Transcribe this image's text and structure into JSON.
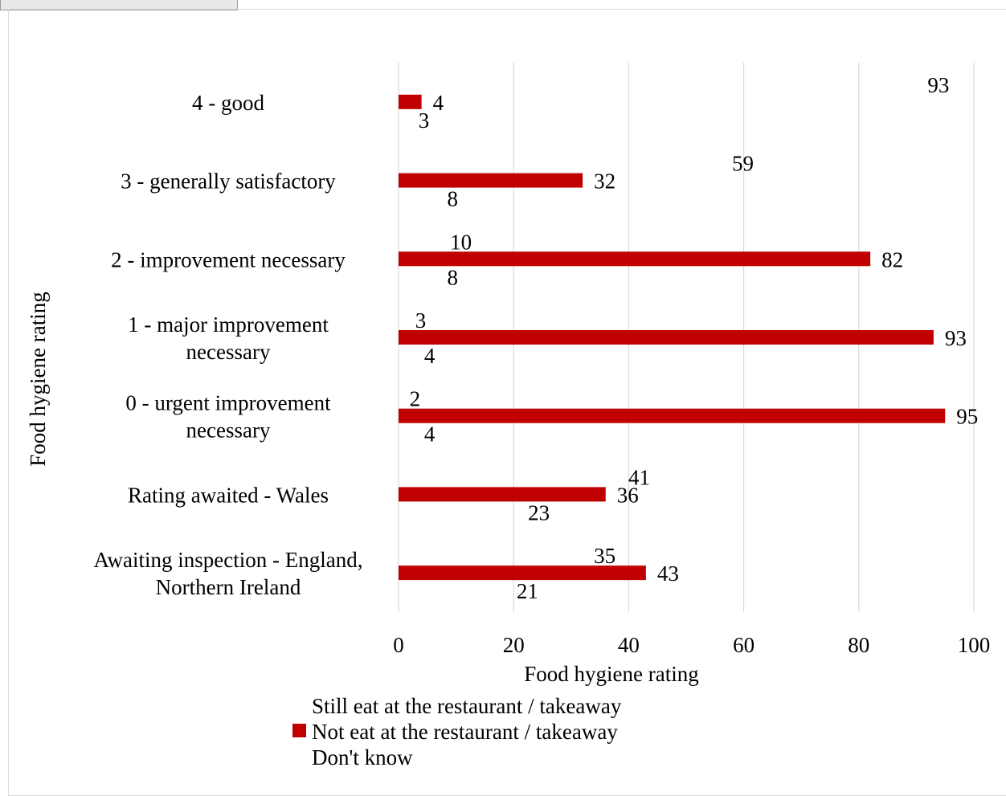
{
  "chart_data": {
    "type": "bar",
    "orientation": "horizontal",
    "categories": [
      [
        "4 - good"
      ],
      [
        "3 - generally satisfactory"
      ],
      [
        "2 - improvement necessary"
      ],
      [
        "1 - major improvement",
        "necessary"
      ],
      [
        "0 - urgent improvement",
        "necessary"
      ],
      [
        "Rating awaited - Wales"
      ],
      [
        "Awaiting inspection - England,",
        "Northern Ireland"
      ]
    ],
    "series": [
      {
        "name": "Still eat at the restaurant / takeaway",
        "color": "#ffffff",
        "values": [
          93,
          59,
          10,
          3,
          2,
          41,
          35
        ]
      },
      {
        "name": "Not eat at the restaurant / takeaway",
        "color": "#c00000",
        "values": [
          4,
          32,
          82,
          93,
          95,
          36,
          43
        ]
      },
      {
        "name": "Don't know",
        "color": "#ffffff",
        "values": [
          3,
          8,
          8,
          4,
          4,
          23,
          21
        ]
      }
    ],
    "xlim": [
      0,
      100
    ],
    "xticks": [
      0,
      20,
      40,
      60,
      80,
      100
    ],
    "xlabel": "Food hygiene rating",
    "ylabel": "Food hygiene rating",
    "grid": "vertical",
    "legend_position": "bottom"
  }
}
